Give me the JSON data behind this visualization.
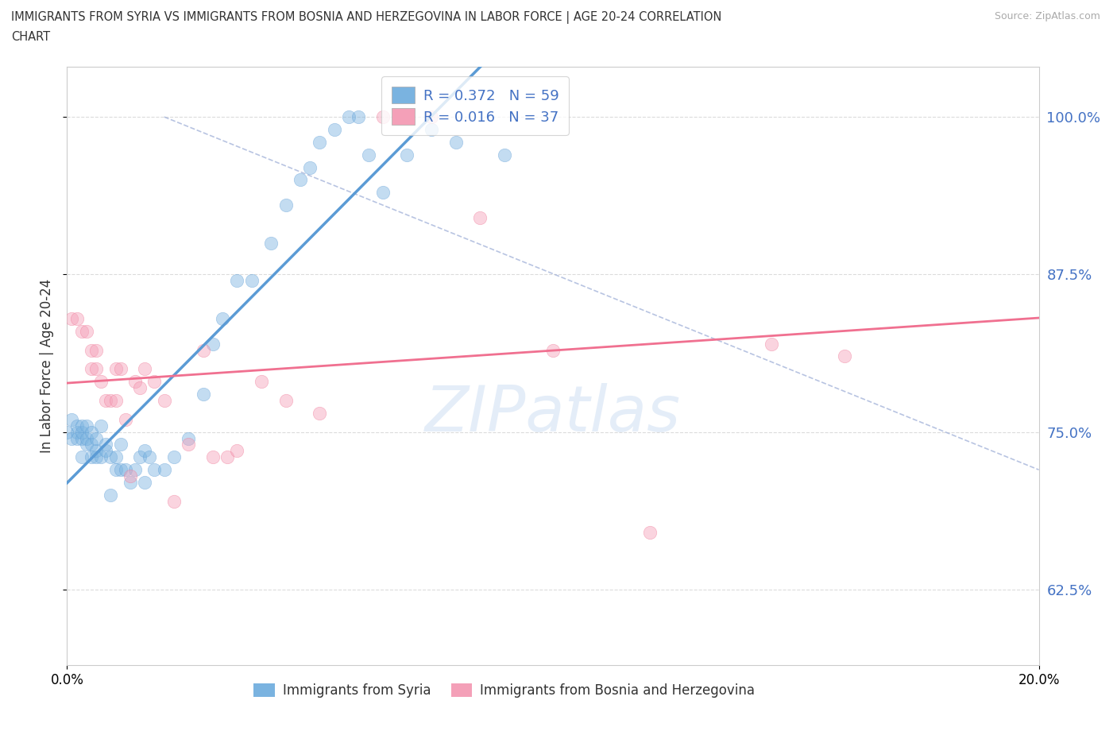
{
  "title_line1": "IMMIGRANTS FROM SYRIA VS IMMIGRANTS FROM BOSNIA AND HERZEGOVINA IN LABOR FORCE | AGE 20-24 CORRELATION",
  "title_line2": "CHART",
  "source": "Source: ZipAtlas.com",
  "ylabel_label": "In Labor Force | Age 20-24",
  "legend_syria_R": "0.372",
  "legend_syria_N": "59",
  "legend_bosnia_R": "0.016",
  "legend_bosnia_N": "37",
  "syria_color": "#5b9bd5",
  "bosnia_color": "#f07090",
  "syria_scatter_color": "#7ab3e0",
  "bosnia_scatter_color": "#f4a0b8",
  "diagonal_color": "#a0b0d8",
  "syria_label": "Immigrants from Syria",
  "bosnia_label": "Immigrants from Bosnia and Herzegovina",
  "xlim": [
    0.0,
    0.2
  ],
  "ylim": [
    0.565,
    1.04
  ],
  "xticks": [
    0.0,
    0.2
  ],
  "yticks": [
    0.625,
    0.75,
    0.875,
    1.0
  ],
  "grid_color": "#d8d8d8",
  "background_color": "#ffffff",
  "watermark_text": "ZIPatlas",
  "syria_x": [
    0.0,
    0.001,
    0.001,
    0.002,
    0.002,
    0.002,
    0.003,
    0.003,
    0.003,
    0.003,
    0.004,
    0.004,
    0.004,
    0.005,
    0.005,
    0.005,
    0.006,
    0.006,
    0.006,
    0.007,
    0.007,
    0.008,
    0.008,
    0.009,
    0.009,
    0.01,
    0.01,
    0.011,
    0.011,
    0.012,
    0.013,
    0.014,
    0.015,
    0.016,
    0.016,
    0.017,
    0.018,
    0.02,
    0.022,
    0.025,
    0.028,
    0.03,
    0.032,
    0.035,
    0.038,
    0.042,
    0.045,
    0.048,
    0.05,
    0.052,
    0.055,
    0.058,
    0.06,
    0.062,
    0.065,
    0.07,
    0.075,
    0.08,
    0.09
  ],
  "syria_y": [
    0.75,
    0.745,
    0.76,
    0.75,
    0.745,
    0.755,
    0.73,
    0.745,
    0.75,
    0.755,
    0.74,
    0.745,
    0.755,
    0.73,
    0.74,
    0.75,
    0.73,
    0.735,
    0.745,
    0.73,
    0.755,
    0.735,
    0.74,
    0.7,
    0.73,
    0.72,
    0.73,
    0.72,
    0.74,
    0.72,
    0.71,
    0.72,
    0.73,
    0.71,
    0.735,
    0.73,
    0.72,
    0.72,
    0.73,
    0.745,
    0.78,
    0.82,
    0.84,
    0.87,
    0.87,
    0.9,
    0.93,
    0.95,
    0.96,
    0.98,
    0.99,
    1.0,
    1.0,
    0.97,
    0.94,
    0.97,
    0.99,
    0.98,
    0.97
  ],
  "bosnia_x": [
    0.001,
    0.002,
    0.003,
    0.004,
    0.005,
    0.005,
    0.006,
    0.006,
    0.007,
    0.008,
    0.009,
    0.01,
    0.01,
    0.011,
    0.012,
    0.013,
    0.014,
    0.015,
    0.016,
    0.018,
    0.02,
    0.022,
    0.025,
    0.028,
    0.03,
    0.033,
    0.035,
    0.04,
    0.045,
    0.052,
    0.065,
    0.075,
    0.085,
    0.1,
    0.12,
    0.145,
    0.16
  ],
  "bosnia_y": [
    0.84,
    0.84,
    0.83,
    0.83,
    0.8,
    0.815,
    0.8,
    0.815,
    0.79,
    0.775,
    0.775,
    0.775,
    0.8,
    0.8,
    0.76,
    0.715,
    0.79,
    0.785,
    0.8,
    0.79,
    0.775,
    0.695,
    0.74,
    0.815,
    0.73,
    0.73,
    0.735,
    0.79,
    0.775,
    0.765,
    1.0,
    1.0,
    0.92,
    0.815,
    0.67,
    0.82,
    0.81
  ]
}
